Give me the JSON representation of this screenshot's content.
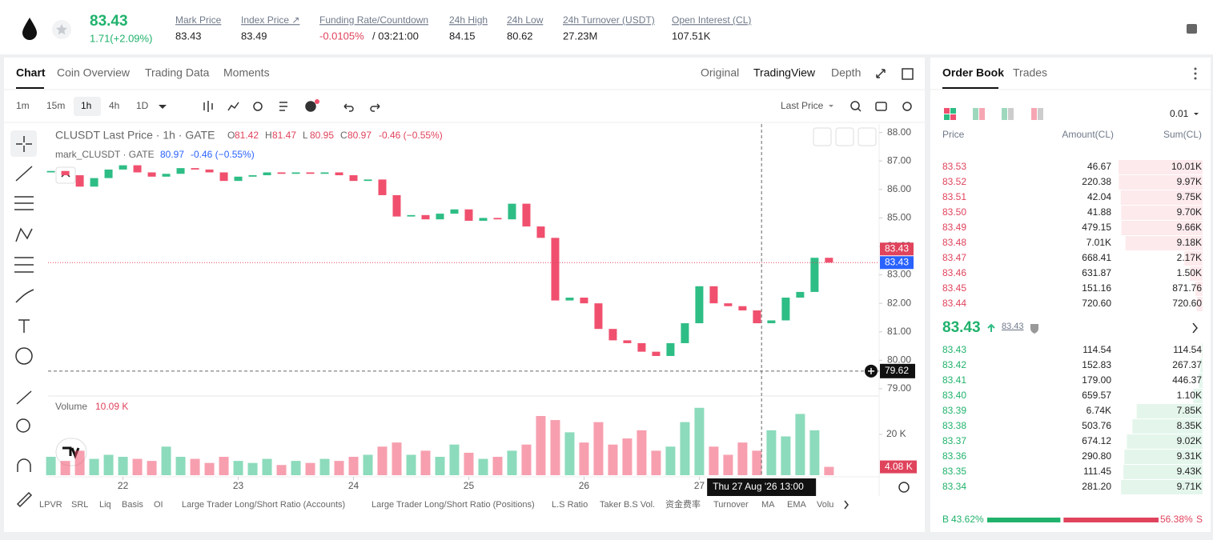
{
  "header": {
    "symbol_price": "83.43",
    "change": "1.71(+2.09%)",
    "stats": [
      {
        "label": "Mark Price",
        "value": "83.43"
      },
      {
        "label": "Index Price ↗",
        "value": "83.49"
      },
      {
        "label": "Funding Rate/Countdown",
        "value": "-0.0105%",
        "extra": "/ 03:21:00"
      },
      {
        "label": "24h High",
        "value": "84.15"
      },
      {
        "label": "24h Low",
        "value": "80.62"
      },
      {
        "label": "24h Turnover (USDT)",
        "value": "27.23M"
      },
      {
        "label": "Open Interest (CL)",
        "value": "107.51K"
      }
    ]
  },
  "chart_tabs": [
    "Chart",
    "Coin Overview",
    "Trading Data",
    "Moments"
  ],
  "view_tabs": [
    "Original",
    "TradingView",
    "Depth"
  ],
  "intervals": [
    "1m",
    "15m",
    "1h",
    "4h",
    "1D"
  ],
  "price_source": "Last Price",
  "legend": {
    "title": "CLUSDT Last Price · 1h · GATE",
    "ohlc": [
      {
        "k": "O",
        "v": "81.42"
      },
      {
        "k": "H",
        "v": "81.47"
      },
      {
        "k": "L",
        "v": "80.95"
      },
      {
        "k": "C",
        "v": "80.97"
      }
    ],
    "change": "-0.46 (−0.55%)",
    "mark_title": "mark_CLUSDT · GATE",
    "mark_value": "80.97",
    "mark_change": "-0.46 (−0.55%)"
  },
  "chart_data": {
    "type": "candlestick",
    "up_color": "#2ebd85",
    "down_color": "#f0506e",
    "open": 86.6,
    "x": [
      21.375,
      21.5,
      21.625,
      21.75,
      21.875,
      22,
      22.125,
      22.25,
      22.375,
      22.5,
      22.625,
      22.75,
      22.875,
      23,
      23.125,
      23.25,
      23.375,
      23.5,
      23.625,
      23.75,
      23.875,
      24,
      24.125,
      24.25,
      24.375,
      24.5,
      24.625,
      24.75,
      24.875,
      25,
      25.125,
      25.25,
      25.375,
      25.5,
      25.625,
      25.75,
      25.875,
      26,
      26.125,
      26.25,
      26.375,
      26.5,
      26.625,
      26.75,
      26.875,
      27,
      27.125,
      27.25,
      27.375,
      27.5,
      27.625,
      27.75,
      27.875,
      28,
      28.125
    ],
    "closes": [
      86.65,
      86.5,
      86.1,
      86.4,
      86.7,
      86.85,
      86.6,
      86.45,
      86.55,
      86.75,
      86.7,
      86.6,
      86.3,
      86.45,
      86.5,
      86.6,
      86.55,
      86.6,
      86.55,
      86.6,
      86.5,
      86.3,
      86.35,
      85.8,
      85.05,
      85.1,
      84.95,
      85.15,
      85.3,
      84.9,
      85.0,
      84.95,
      85.5,
      84.7,
      84.3,
      82.1,
      82.2,
      82.0,
      81.1,
      80.7,
      80.6,
      80.3,
      80.15,
      80.6,
      81.3,
      82.6,
      82.0,
      81.9,
      81.75,
      81.3,
      81.4,
      82.2,
      82.4,
      83.6,
      83.43
    ],
    "volumes": [
      9000,
      7000,
      12000,
      8000,
      10000,
      9000,
      8000,
      7000,
      14000,
      9000,
      8000,
      6000,
      9000,
      7000,
      6000,
      8000,
      5000,
      7000,
      6000,
      8000,
      7000,
      9000,
      10000,
      14000,
      16000,
      10000,
      12000,
      9000,
      15000,
      11000,
      8000,
      9000,
      12000,
      15000,
      29000,
      27000,
      21000,
      16000,
      26000,
      15000,
      18000,
      22000,
      12000,
      14000,
      26000,
      33000,
      14000,
      10000,
      16000,
      12000,
      22000,
      19000,
      30000,
      22000,
      4080
    ],
    "last_volume_label": "4.08 K",
    "xlim": [
      21.35,
      28.56
    ],
    "xticks": [
      22,
      23,
      24,
      25,
      26,
      27
    ],
    "ylim": [
      78.8,
      88.3
    ],
    "yticks": [
      {
        "value": 88,
        "label": "88.00"
      },
      {
        "value": 87,
        "label": "87.00"
      },
      {
        "value": 86,
        "label": "86.00"
      },
      {
        "value": 85,
        "label": "85.00"
      },
      {
        "value": 84,
        "label": "84.00"
      },
      {
        "value": 83,
        "label": "83.00"
      },
      {
        "value": 82,
        "label": "82.00"
      },
      {
        "value": 81,
        "label": "81.00"
      },
      {
        "value": 80,
        "label": "80.00"
      },
      {
        "value": 79,
        "label": "79.00"
      }
    ],
    "volume_ylim": [
      0,
      38000
    ],
    "volume_yticks": [
      {
        "value": 20000,
        "label": "20 K"
      }
    ],
    "volume_title": "Volume",
    "volume_value": 10090,
    "volume_value_label": "10.09 K",
    "last_price": 83.43,
    "last_price_label": "83.43",
    "crosshair": {
      "x": 27.54,
      "price": 79.62,
      "price_label": "79.62",
      "time_label": "Thu 27 Aug '26   13:00"
    }
  },
  "indicators": [
    "LPVR",
    "SRL",
    "Liq",
    "Basis",
    "OI",
    "Large Trader Long/Short Ratio (Accounts)",
    "Large Trader Long/Short Ratio (Positions)",
    "L.S Ratio",
    "Taker B.S Vol.",
    "资金费率",
    "Turnover",
    "MA",
    "EMA",
    "Volu"
  ],
  "order_book": {
    "tabs": [
      "Order Book",
      "Trades"
    ],
    "precision": "0.01",
    "headers": [
      "Price",
      "Amount(CL)",
      "Sum(CL)"
    ],
    "asks": [
      {
        "price": "83.53",
        "amount": "46.67",
        "sum": 10010,
        "sum_label": "10.01K"
      },
      {
        "price": "83.52",
        "amount": "220.38",
        "sum": 9970,
        "sum_label": "9.97K"
      },
      {
        "price": "83.51",
        "amount": "42.04",
        "sum": 9750,
        "sum_label": "9.75K"
      },
      {
        "price": "83.50",
        "amount": "41.88",
        "sum": 9700,
        "sum_label": "9.70K"
      },
      {
        "price": "83.49",
        "amount": "479.15",
        "sum": 9660,
        "sum_label": "9.66K"
      },
      {
        "price": "83.48",
        "amount": "7.01K",
        "sum": 9180,
        "sum_label": "9.18K"
      },
      {
        "price": "83.47",
        "amount": "668.41",
        "sum": 2170,
        "sum_label": "2.17K"
      },
      {
        "price": "83.46",
        "amount": "631.87",
        "sum": 1500,
        "sum_label": "1.50K"
      },
      {
        "price": "83.45",
        "amount": "151.16",
        "sum": 871.76,
        "sum_label": "871.76"
      },
      {
        "price": "83.44",
        "amount": "720.60",
        "sum": 720.6,
        "sum_label": "720.60"
      }
    ],
    "mid_price": "83.43",
    "mark_price": "83.43",
    "bids": [
      {
        "price": "83.43",
        "amount": "114.54",
        "sum": 114.54,
        "sum_label": "114.54"
      },
      {
        "price": "83.42",
        "amount": "152.83",
        "sum": 267.37,
        "sum_label": "267.37"
      },
      {
        "price": "83.41",
        "amount": "179.00",
        "sum": 446.37,
        "sum_label": "446.37"
      },
      {
        "price": "83.40",
        "amount": "659.57",
        "sum": 1100,
        "sum_label": "1.10K"
      },
      {
        "price": "83.39",
        "amount": "6.74K",
        "sum": 7850,
        "sum_label": "7.85K"
      },
      {
        "price": "83.38",
        "amount": "503.76",
        "sum": 8350,
        "sum_label": "8.35K"
      },
      {
        "price": "83.37",
        "amount": "674.12",
        "sum": 9020,
        "sum_label": "9.02K"
      },
      {
        "price": "83.36",
        "amount": "290.80",
        "sum": 9310,
        "sum_label": "9.31K"
      },
      {
        "price": "83.35",
        "amount": "111.45",
        "sum": 9430,
        "sum_label": "9.43K"
      },
      {
        "price": "83.34",
        "amount": "281.20",
        "sum": 9710,
        "sum_label": "9.71K"
      }
    ],
    "ratio": {
      "buy_key": "B",
      "buy": 43.62,
      "buy_label": "43.62%",
      "sell": 56.38,
      "sell_label": "56.38%",
      "sell_key": "S"
    }
  }
}
